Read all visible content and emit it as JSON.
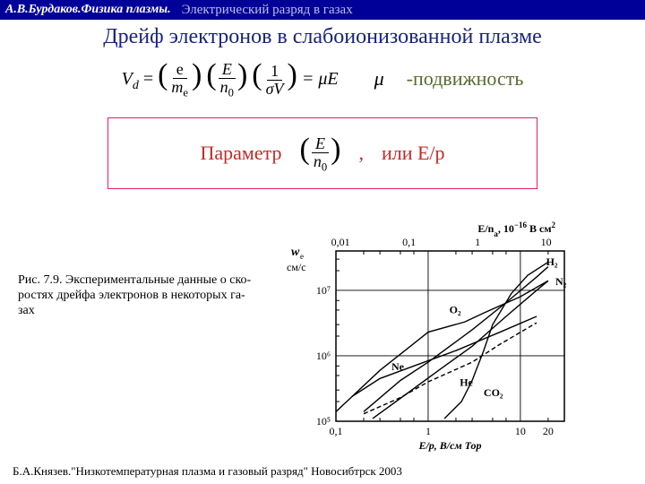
{
  "header": {
    "author": "А.В.Бурдаков.Физика плазмы.",
    "subtitle": "Электрический разряд в газах"
  },
  "title": "Дрейф электронов в слабоионизованной плазме",
  "formula": {
    "vd": "V",
    "vd_sub": "d",
    "eq": "=",
    "t1_num": "e",
    "t1_den_a": "m",
    "t1_den_sub": "e",
    "t2_num": "E",
    "t2_den_a": "n",
    "t2_den_sub": "0",
    "t3_num": "1",
    "t3_den": "σV",
    "rhs": "= μE",
    "mu": "μ",
    "mobility": "-подвижность"
  },
  "param": {
    "label": "Параметр",
    "f_num": "E",
    "f_den_a": "n",
    "f_den_sub": "0",
    "comma": ",",
    "or": "или  E/p"
  },
  "caption": {
    "fig": "Рис. 7.9.",
    "text": " Экспериментальные данные о ско-ростях дрейфа электронов в некоторых га-зах"
  },
  "chart": {
    "type": "log-log-line",
    "background_color": "#ffffff",
    "axis_color": "#000000",
    "grid_color": "#000000",
    "line_color": "#000000",
    "line_width": 1.4,
    "font_size": 12,
    "x_label": "E/p, В/см Тор",
    "y_label_1": "w",
    "y_label_1_sub": "e",
    "y_label_2": "см/с",
    "top_label_1": "E/n",
    "top_label_1_sub": "a",
    "top_label_2": ", 10",
    "top_label_2_sup": "−16",
    "top_label_3": " В см",
    "top_label_3_sup": "2",
    "x_ticks_bottom": [
      0.1,
      1,
      10,
      20
    ],
    "x_ticks_bottom_labels": [
      "0,1",
      "1",
      "10",
      "20"
    ],
    "x_ticks_top": [
      0.01,
      0.1,
      1,
      10
    ],
    "x_ticks_top_labels": [
      "0,01",
      "0,1",
      "1",
      "10"
    ],
    "y_ticks": [
      100000.0,
      1000000.0,
      10000000.0
    ],
    "y_tick_labels": [
      "10⁵",
      "10⁶",
      "10⁷"
    ],
    "xlim": [
      0.1,
      30
    ],
    "ylim": [
      100000.0,
      40000000.0
    ],
    "series": [
      {
        "name": "O2",
        "label": "O₂",
        "label_pos": [
          1.7,
          4500000.0
        ],
        "style": "solid",
        "points": [
          [
            0.1,
            140000.0
          ],
          [
            0.3,
            600000.0
          ],
          [
            0.6,
            1300000.0
          ],
          [
            1,
            2300000.0
          ],
          [
            2.5,
            3300000.0
          ],
          [
            4,
            4500000.0
          ],
          [
            10,
            8000000.0
          ],
          [
            20,
            14000000.0
          ]
        ]
      },
      {
        "name": "Ne",
        "label": "Ne",
        "label_pos": [
          0.4,
          600000.0
        ],
        "style": "solid",
        "points": [
          [
            0.15,
            240000.0
          ],
          [
            0.3,
            450000.0
          ],
          [
            0.7,
            700000.0
          ],
          [
            2,
            1200000.0
          ],
          [
            6,
            2300000.0
          ],
          [
            15,
            4000000.0
          ]
        ]
      },
      {
        "name": "He",
        "label": "He",
        "label_pos": [
          2.2,
          350000.0
        ],
        "style": "dash",
        "points": [
          [
            0.2,
            130000.0
          ],
          [
            0.5,
            230000.0
          ],
          [
            1,
            400000.0
          ],
          [
            3,
            800000.0
          ],
          [
            6,
            1500000.0
          ],
          [
            15,
            3200000.0
          ]
        ]
      },
      {
        "name": "CO2",
        "label": "CO₂",
        "label_pos": [
          4.0,
          240000.0
        ],
        "style": "solid",
        "points": [
          [
            1.5,
            110000.0
          ],
          [
            2.3,
            200000.0
          ],
          [
            3,
            420000.0
          ],
          [
            4,
            1200000.0
          ],
          [
            5,
            3000000.0
          ],
          [
            8,
            9000000.0
          ],
          [
            12,
            17000000.0
          ],
          [
            20,
            27000000.0
          ]
        ]
      },
      {
        "name": "H2",
        "label": "H₂",
        "label_pos": [
          19,
          24000000.0
        ],
        "style": "solid",
        "points": [
          [
            0.2,
            140000.0
          ],
          [
            0.5,
            420000.0
          ],
          [
            1,
            800000.0
          ],
          [
            3,
            2500000.0
          ],
          [
            7,
            6500000.0
          ],
          [
            15,
            16000000.0
          ],
          [
            20,
            23000000.0
          ]
        ]
      },
      {
        "name": "N2",
        "label": "N₂",
        "label_pos": [
          24,
          12000000.0
        ],
        "style": "solid",
        "points": [
          [
            0.25,
            110000.0
          ],
          [
            0.6,
            270000.0
          ],
          [
            1.3,
            600000.0
          ],
          [
            3,
            1400000.0
          ],
          [
            7,
            4000000.0
          ],
          [
            15,
            10000000.0
          ],
          [
            20,
            14000000.0
          ]
        ]
      }
    ]
  },
  "footer": "Б.А.Князев.\"Низкотемпературная плазма и газовый разряд\" Новосибтрск 2003"
}
